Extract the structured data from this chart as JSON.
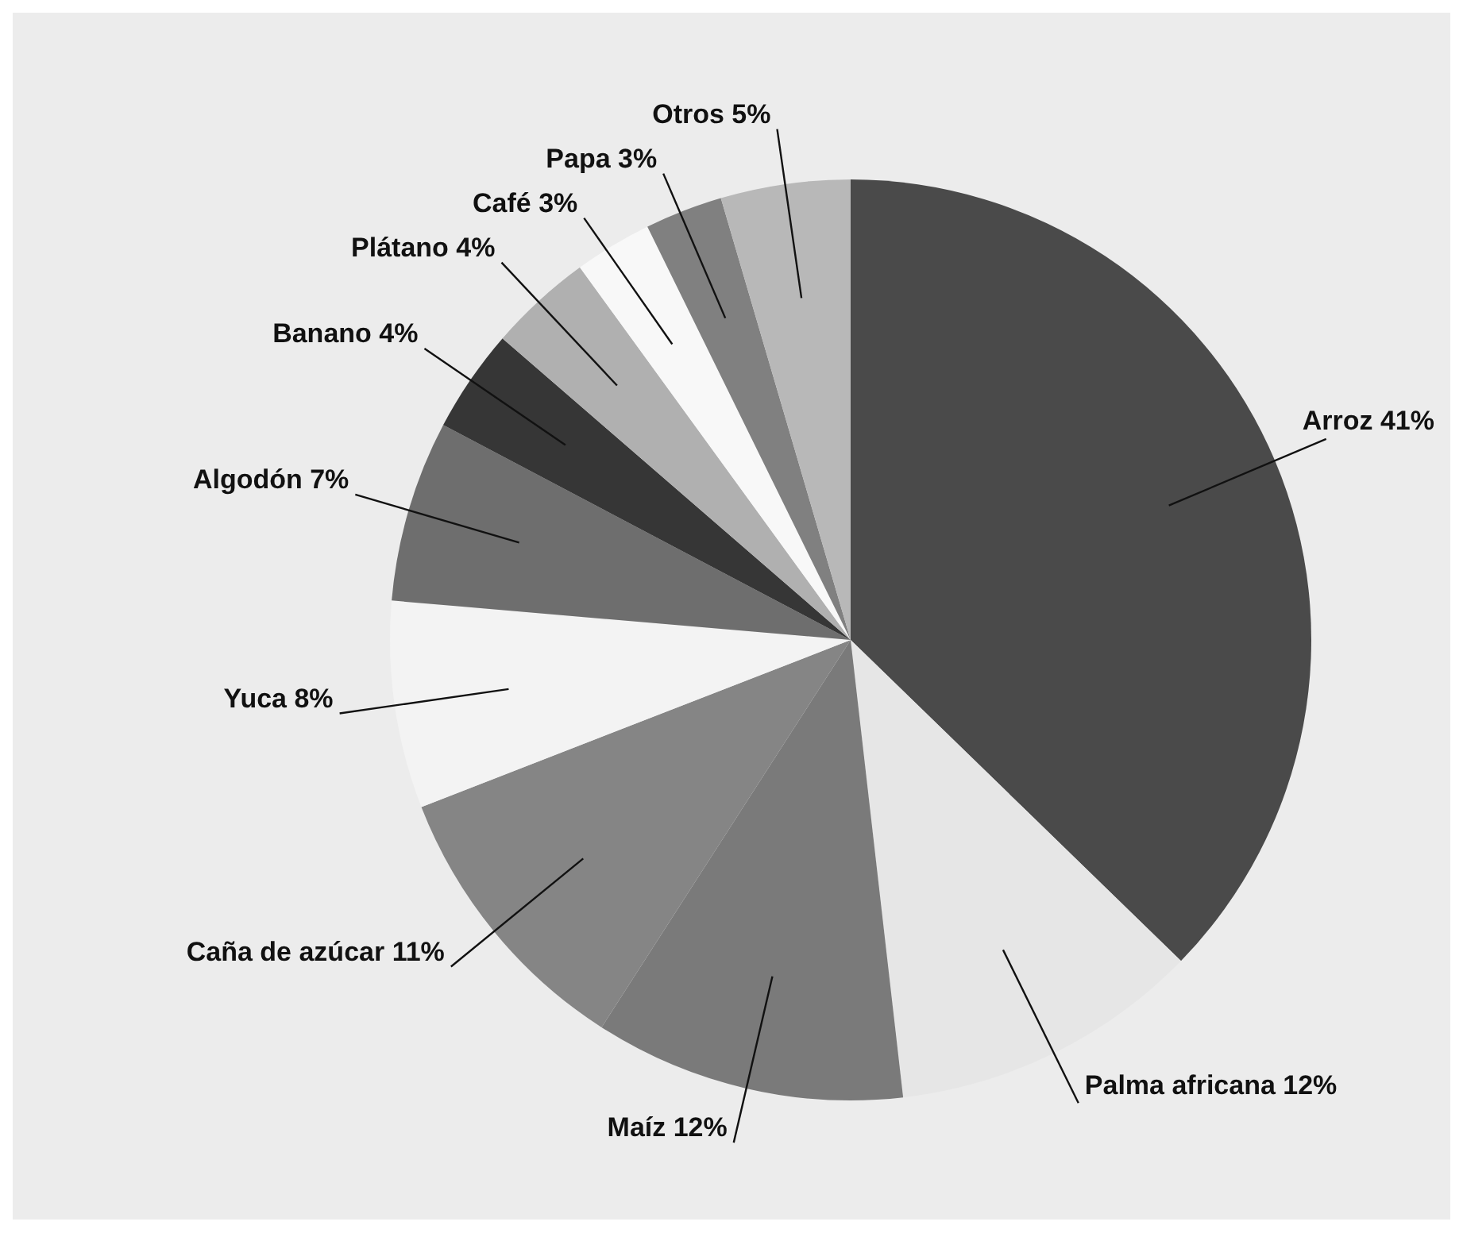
{
  "chart_data": {
    "type": "pie",
    "categories": [
      "Arroz",
      "Palma africana",
      "Maíz",
      "Caña de azúcar",
      "Yuca",
      "Algodón",
      "Banano",
      "Plátano",
      "Café",
      "Papa",
      "Otros"
    ],
    "values": [
      41,
      12,
      12,
      11,
      8,
      7,
      4,
      4,
      3,
      3,
      5
    ],
    "value_labels": [
      "41%",
      "12%",
      "12%",
      "11%",
      "8%",
      "7%",
      "4%",
      "4%",
      "3%",
      "3%",
      "5%"
    ],
    "colors": [
      "#4a4a4a",
      "#e6e6e6",
      "#7a7a7a",
      "#858585",
      "#f3f3f3",
      "#6e6e6e",
      "#363636",
      "#b0b0b0",
      "#f8f8f8",
      "#808080",
      "#b8b8b8"
    ]
  }
}
